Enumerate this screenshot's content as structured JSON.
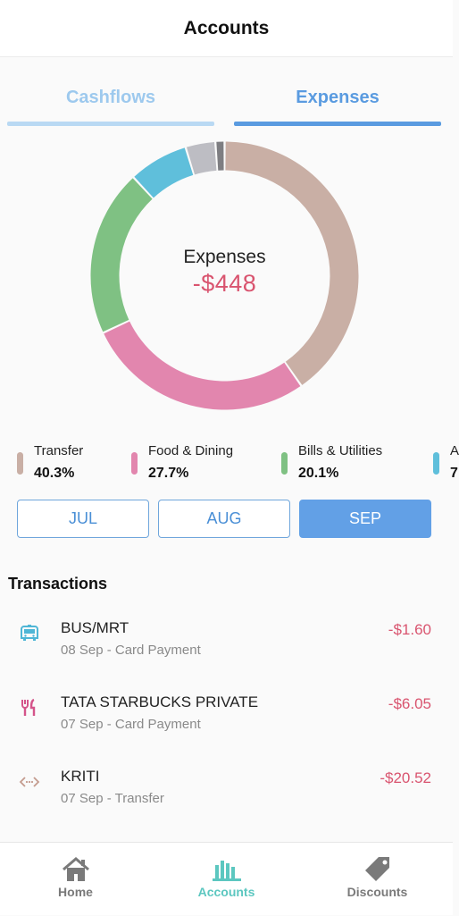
{
  "header": {
    "title": "Accounts"
  },
  "tabs": [
    {
      "label": "Cashflows"
    },
    {
      "label": "Expenses"
    }
  ],
  "chart_data": {
    "type": "pie",
    "center_label": "Expenses",
    "center_value": "-$448",
    "slices": [
      {
        "name": "Transfer",
        "percent": 40.3,
        "color": "#c9afa5"
      },
      {
        "name": "Food & Dining",
        "percent": 27.7,
        "color": "#e286ae"
      },
      {
        "name": "Bills & Utilities",
        "percent": 20.1,
        "color": "#7fc183"
      },
      {
        "name": "",
        "percent": 7.2,
        "color": "#5fbfdb"
      },
      {
        "name": "",
        "percent": 3.6,
        "color": "#bdbdc3"
      },
      {
        "name": "",
        "percent": 1.1,
        "color": "#7e7e82"
      }
    ]
  },
  "legend": [
    {
      "name": "Transfer",
      "percent_label": "40.3%",
      "color": "#c9afa5"
    },
    {
      "name": "Food & Dining",
      "percent_label": "27.7%",
      "color": "#e286ae"
    },
    {
      "name": "Bills & Utilities",
      "percent_label": "20.1%",
      "color": "#7fc183"
    },
    {
      "name": "A",
      "percent_label": "7",
      "color": "#5fbfdb"
    }
  ],
  "months": [
    {
      "label": "JUL"
    },
    {
      "label": "AUG"
    },
    {
      "label": "SEP",
      "selected": true
    }
  ],
  "transactions_title": "Transactions",
  "transactions": [
    {
      "name": "BUS/MRT",
      "sub": "08 Sep - Card Payment",
      "amount": "-$1.60",
      "icon": "bus-icon",
      "icon_color": "#4fb6d6"
    },
    {
      "name": "TATA STARBUCKS PRIVATE",
      "sub": "07 Sep - Card Payment",
      "amount": "-$6.05",
      "icon": "fork-knife-icon",
      "icon_color": "#d4548a"
    },
    {
      "name": "KRITI",
      "sub": "07 Sep - Transfer",
      "amount": "-$20.52",
      "icon": "transfer-icon",
      "icon_color": "#c49b8e"
    }
  ],
  "nav": [
    {
      "label": "Home",
      "icon": "home-icon"
    },
    {
      "label": "Accounts",
      "icon": "bar-chart-icon",
      "active": true
    },
    {
      "label": "Discounts",
      "icon": "tag-icon"
    }
  ],
  "colors": {
    "accent": "#5a9be0",
    "negative": "#d9546f",
    "nav_active": "#5cc7c0"
  }
}
